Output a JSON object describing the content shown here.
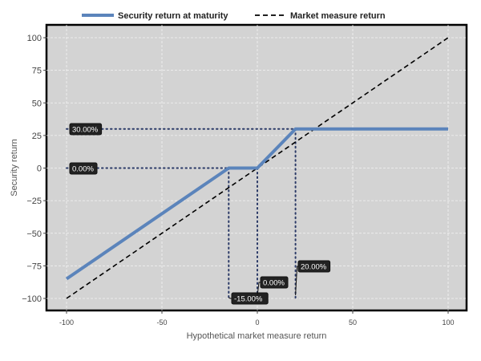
{
  "chart_data": {
    "type": "line",
    "xlabel": "Hypothetical market measure return",
    "ylabel": "Security return",
    "xlim": [
      -110,
      110
    ],
    "ylim": [
      -110,
      110
    ],
    "xticks": [
      -100,
      -50,
      0,
      50,
      100
    ],
    "yticks": [
      -100,
      -75,
      -50,
      -25,
      0,
      25,
      50,
      75,
      100
    ],
    "xtick_labels": [
      "-100",
      "-50",
      "0",
      "50",
      "100"
    ],
    "ytick_labels": [
      "−100",
      "−75",
      "−50",
      "−25",
      "0",
      "25",
      "50",
      "75",
      "100"
    ],
    "grid": true,
    "legend_position": "top",
    "series": [
      {
        "name": "Security return at maturity",
        "style": "solid",
        "color": "#5b84bb",
        "x": [
          -100,
          -15,
          0,
          20,
          100
        ],
        "y": [
          -85,
          0,
          0,
          30,
          30
        ]
      },
      {
        "name": "Market measure return",
        "style": "dashed",
        "color": "#000000",
        "x": [
          -100,
          100
        ],
        "y": [
          -100,
          100
        ]
      }
    ],
    "annotations": [
      {
        "text": "30.00%",
        "kind": "y-level",
        "y": 30,
        "x_start": -100,
        "x_end": 20
      },
      {
        "text": "0.00%",
        "kind": "y-level",
        "y": 0,
        "x_start": -100,
        "x_end": 0
      },
      {
        "text": "-15.00%",
        "kind": "x-level",
        "x": -15,
        "y_start": 0,
        "y_end": -100
      },
      {
        "text": "0.00%",
        "kind": "x-level",
        "x": 0,
        "y_start": 0,
        "y_end": -100
      },
      {
        "text": "20.00%",
        "kind": "x-level",
        "x": 20,
        "y_start": 30,
        "y_end": -100
      }
    ]
  }
}
